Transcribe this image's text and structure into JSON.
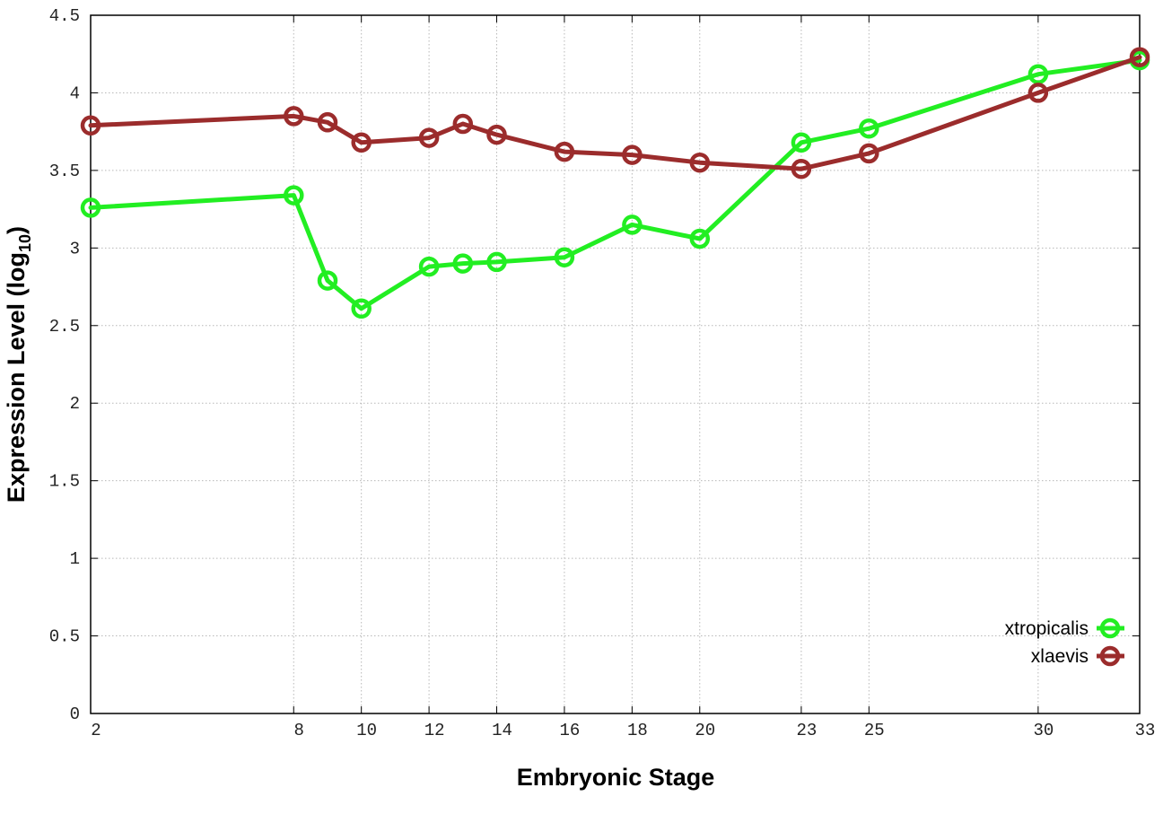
{
  "chart_data": {
    "type": "line",
    "xlabel": "Embryonic Stage",
    "ylabel_main": "Expression Level (log",
    "ylabel_sub": "10",
    "ylabel_close": ")",
    "x": [
      2,
      8,
      9,
      10,
      12,
      13,
      14,
      16,
      18,
      20,
      23,
      25,
      30,
      33
    ],
    "x_ticks": [
      2,
      8,
      10,
      12,
      14,
      16,
      18,
      20,
      23,
      25,
      30,
      33
    ],
    "x_tick_labels": [
      "2",
      "8",
      "10",
      "12",
      "14",
      "16",
      "18",
      "20",
      "23",
      "25",
      "30",
      "33"
    ],
    "xlim": [
      2,
      33
    ],
    "ylim": [
      0,
      4.5
    ],
    "y_ticks": [
      0,
      0.5,
      1,
      1.5,
      2,
      2.5,
      3,
      3.5,
      4,
      4.5
    ],
    "y_tick_labels": [
      "0",
      "0.5",
      "1",
      "1.5",
      "2",
      "2.5",
      "3",
      "3.5",
      "4",
      "4.5"
    ],
    "grid": true,
    "legend_position": "bottom-right",
    "series": [
      {
        "name": "xtropicalis",
        "color": "#22ee22",
        "values": [
          3.26,
          3.34,
          2.79,
          2.61,
          2.88,
          2.9,
          2.91,
          2.94,
          3.15,
          3.06,
          3.68,
          3.77,
          4.12,
          4.21
        ]
      },
      {
        "name": "xlaevis",
        "color": "#9b2c2c",
        "values": [
          3.79,
          3.85,
          3.81,
          3.68,
          3.71,
          3.8,
          3.73,
          3.62,
          3.6,
          3.55,
          3.51,
          3.61,
          4.0,
          4.23
        ]
      }
    ]
  }
}
